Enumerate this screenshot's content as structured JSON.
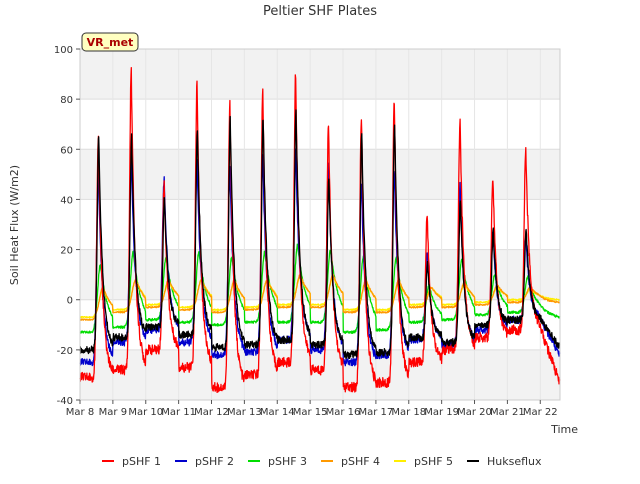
{
  "chart_data": {
    "type": "line",
    "title": "Peltier SHF Plates",
    "xlabel": "Time",
    "ylabel": "Soil Heat Flux (W/m2)",
    "ylim": [
      -40,
      100
    ],
    "yticks": [
      -40,
      -20,
      0,
      20,
      40,
      60,
      80,
      100
    ],
    "xlim": [
      0,
      14.6
    ],
    "xtick_labels": [
      "Mar 8",
      "Mar 9",
      "Mar 10",
      "Mar 11",
      "Mar 12",
      "Mar 13",
      "Mar 14",
      "Mar 15",
      "Mar 16",
      "Mar 17",
      "Mar 18",
      "Mar 19",
      "Mar 20",
      "Mar 21",
      "Mar 22"
    ],
    "grid": true,
    "legend_position": "bottom",
    "annotation": "VR_met",
    "series": [
      {
        "name": "pSHF 1",
        "color": "#ff0000",
        "daily_max": [
          66,
          92,
          46,
          86,
          78,
          83,
          90,
          70,
          73,
          80,
          35,
          71,
          49,
          60
        ],
        "daily_min": [
          -31,
          -28,
          -20,
          -27,
          -35,
          -30,
          -25,
          -28,
          -35,
          -33,
          -25,
          -20,
          -15,
          -12
        ],
        "final_value": -33
      },
      {
        "name": "pSHF 2",
        "color": "#0000cc",
        "daily_max": [
          51,
          56,
          48,
          55,
          52,
          57,
          60,
          55,
          47,
          52,
          20,
          46,
          28,
          25
        ],
        "daily_min": [
          -25,
          -17,
          -12,
          -17,
          -22,
          -21,
          -16,
          -20,
          -25,
          -22,
          -16,
          -18,
          -12,
          -8
        ],
        "final_value": -22
      },
      {
        "name": "pSHF 3",
        "color": "#00dd00",
        "daily_max": [
          14,
          19,
          17,
          19,
          17,
          19,
          22,
          20,
          17,
          17,
          6,
          16,
          10,
          9
        ],
        "daily_min": [
          -13,
          -11,
          -8,
          -9,
          -10,
          -9,
          -9,
          -9,
          -13,
          -12,
          -9,
          -8,
          -6,
          -5
        ],
        "final_value": -7
      },
      {
        "name": "pSHF 4",
        "color": "#ff9900",
        "daily_max": [
          5,
          8,
          8,
          8,
          8,
          8,
          10,
          10,
          8,
          8,
          5,
          7,
          6,
          5
        ],
        "daily_min": [
          -8,
          -5,
          -3,
          -4,
          -5,
          -4,
          -3,
          -3,
          -5,
          -5,
          -3,
          -3,
          -2,
          -1
        ],
        "final_value": -1
      },
      {
        "name": "pSHF 5",
        "color": "#ffee00",
        "daily_max": [
          4,
          8,
          7,
          8,
          7,
          8,
          9,
          9,
          7,
          7,
          5,
          6,
          5,
          4
        ],
        "daily_min": [
          -7,
          -4,
          -2,
          -3,
          -4,
          -3,
          -2,
          -2,
          -4,
          -4,
          -2,
          -2,
          -1,
          0
        ],
        "final_value": 0
      },
      {
        "name": "Hukseflux",
        "color": "#000000",
        "daily_max": [
          65,
          65,
          41,
          68,
          72,
          73,
          75,
          49,
          66,
          70,
          15,
          40,
          28,
          28
        ],
        "daily_min": [
          -20,
          -15,
          -11,
          -14,
          -19,
          -18,
          -16,
          -18,
          -22,
          -21,
          -15,
          -17,
          -10,
          -8
        ],
        "final_value": -19
      }
    ]
  }
}
